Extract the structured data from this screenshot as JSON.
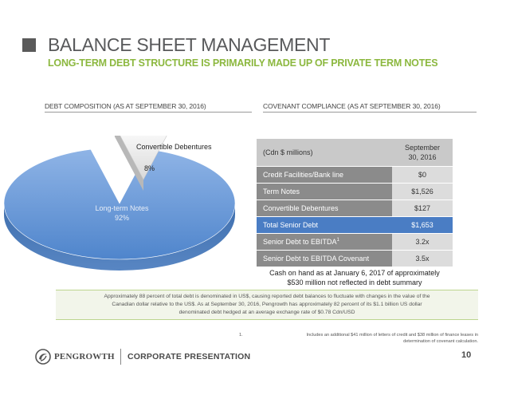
{
  "header": {
    "title": "BALANCE SHEET MANAGEMENT",
    "subtitle": "LONG-TERM DEBT STRUCTURE IS PRIMARILY MADE UP OF PRIVATE TERM NOTES"
  },
  "left_section": {
    "heading": "DEBT COMPOSITION (AS AT SEPTEMBER  30, 2016)"
  },
  "right_section": {
    "heading": "COVENANT COMPLIANCE (AS AT SEPTEMBER 30, 2016)"
  },
  "chart_data": {
    "type": "pie",
    "slices": [
      {
        "label": "Long-term Notes",
        "value": 92,
        "value_label": "92%"
      },
      {
        "label": "Convertible Debentures",
        "value": 8,
        "value_label": "8%"
      }
    ],
    "colors": {
      "Long-term Notes": "#5b8fd1",
      "Convertible Debentures": "#ececec"
    }
  },
  "covenant_table": {
    "header": {
      "label": "(Cdn $ millions)",
      "value_line1": "September",
      "value_line2": "30, 2016"
    },
    "rows": [
      {
        "label": "Credit Facilities/Bank line",
        "value": "$0"
      },
      {
        "label": "Term Notes",
        "value": "$1,526"
      },
      {
        "label": "Convertible Debentures",
        "value": "$127"
      },
      {
        "label": "Total Senior Debt",
        "value": "$1,653",
        "highlight": true
      },
      {
        "label": "Senior Debt to EBITDA",
        "sup": "1",
        "value": "3.2x"
      },
      {
        "label": "Senior Debt to EBITDA Covenant",
        "value": "3.5x"
      }
    ]
  },
  "cash_note": {
    "line1": "Cash on hand as at January 6, 2017 of approximately",
    "line2": "$530 million not reflected in debt summary"
  },
  "note_box": {
    "line1": "Approximately 88 percent of total debt is denominated in US$, causing reported debt balances to fluctuate with changes in the value of the",
    "line2": "Canadian dollar relative to the US$. As at September 30, 2016, Pengrowth has approximately 82 percent of its $1.1 billion US dollar",
    "line3": "denominated debt hedged at an average exchange rate of $0.78 Cdn/USD"
  },
  "footnote": {
    "number": "1.",
    "line1": "Includes an additional $41 million of letters of credit and $38 million of finance leases in",
    "line2": "determination of covenant calculation."
  },
  "footer": {
    "logo_text": "PENGROWTH",
    "presentation": "CORPORATE PRESENTATION",
    "page_number": "10"
  },
  "colors": {
    "title_gray": "#58595b",
    "subtitle_green": "#8cb83f",
    "table_dark": "#8b8b8b",
    "table_light": "#dcdcdc",
    "table_highlight": "#4a7dc4"
  }
}
